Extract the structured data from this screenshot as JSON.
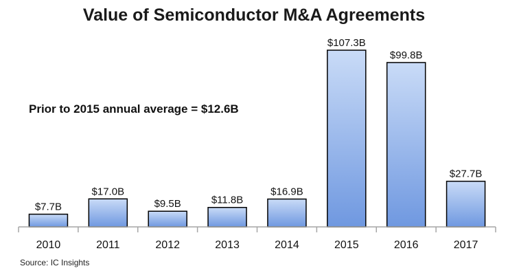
{
  "chart_data": {
    "type": "bar",
    "title": "Value of Semiconductor M&A Agreements",
    "categories": [
      "2010",
      "2011",
      "2012",
      "2013",
      "2014",
      "2015",
      "2016",
      "2017"
    ],
    "values": [
      7.7,
      17.0,
      9.5,
      11.8,
      16.9,
      107.3,
      99.8,
      27.7
    ],
    "data_labels": [
      "$7.7B",
      "$17.0B",
      "$9.5B",
      "$11.8B",
      "$16.9B",
      "$107.3B",
      "$99.8B",
      "$27.7B"
    ],
    "annotation": "Prior to 2015 annual average = $12.6B",
    "source": "Source: IC Insights",
    "xlabel": "",
    "ylabel": "",
    "ylim": [
      0,
      107.3
    ],
    "grid": false,
    "colors": {
      "bar_top": "#c9dbf7",
      "bar_bottom": "#6f98e0",
      "bar_stroke": "#000000",
      "axis": "#a6a6a6"
    }
  }
}
